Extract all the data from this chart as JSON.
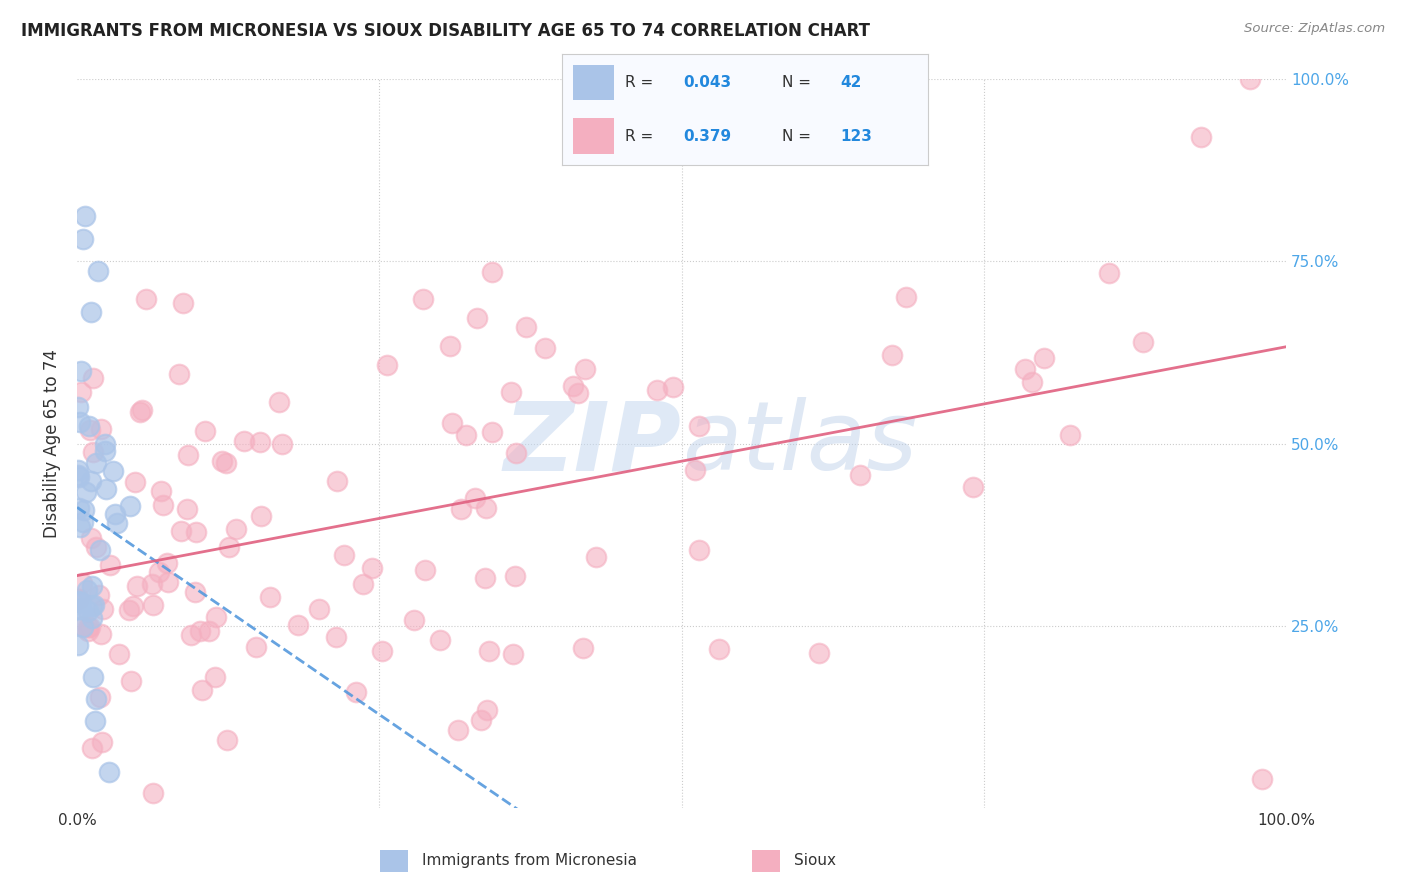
{
  "title": "IMMIGRANTS FROM MICRONESIA VS SIOUX DISABILITY AGE 65 TO 74 CORRELATION CHART",
  "source": "Source: ZipAtlas.com",
  "ylabel": "Disability Age 65 to 74",
  "xlim": [
    0,
    1.0
  ],
  "ylim": [
    0,
    1.0
  ],
  "micronesia_color": "#aac4e8",
  "sioux_color": "#f4afc0",
  "micronesia_line_color": "#5599dd",
  "sioux_line_color": "#e06080",
  "R_micronesia": 0.043,
  "N_micronesia": 42,
  "R_sioux": 0.379,
  "N_sioux": 123,
  "watermark": "ZIPatlas",
  "background_color": "#ffffff",
  "grid_color": "#cccccc",
  "right_tick_color": "#4da6e8",
  "legend_text_color": "#333333",
  "legend_value_color": "#2288dd"
}
